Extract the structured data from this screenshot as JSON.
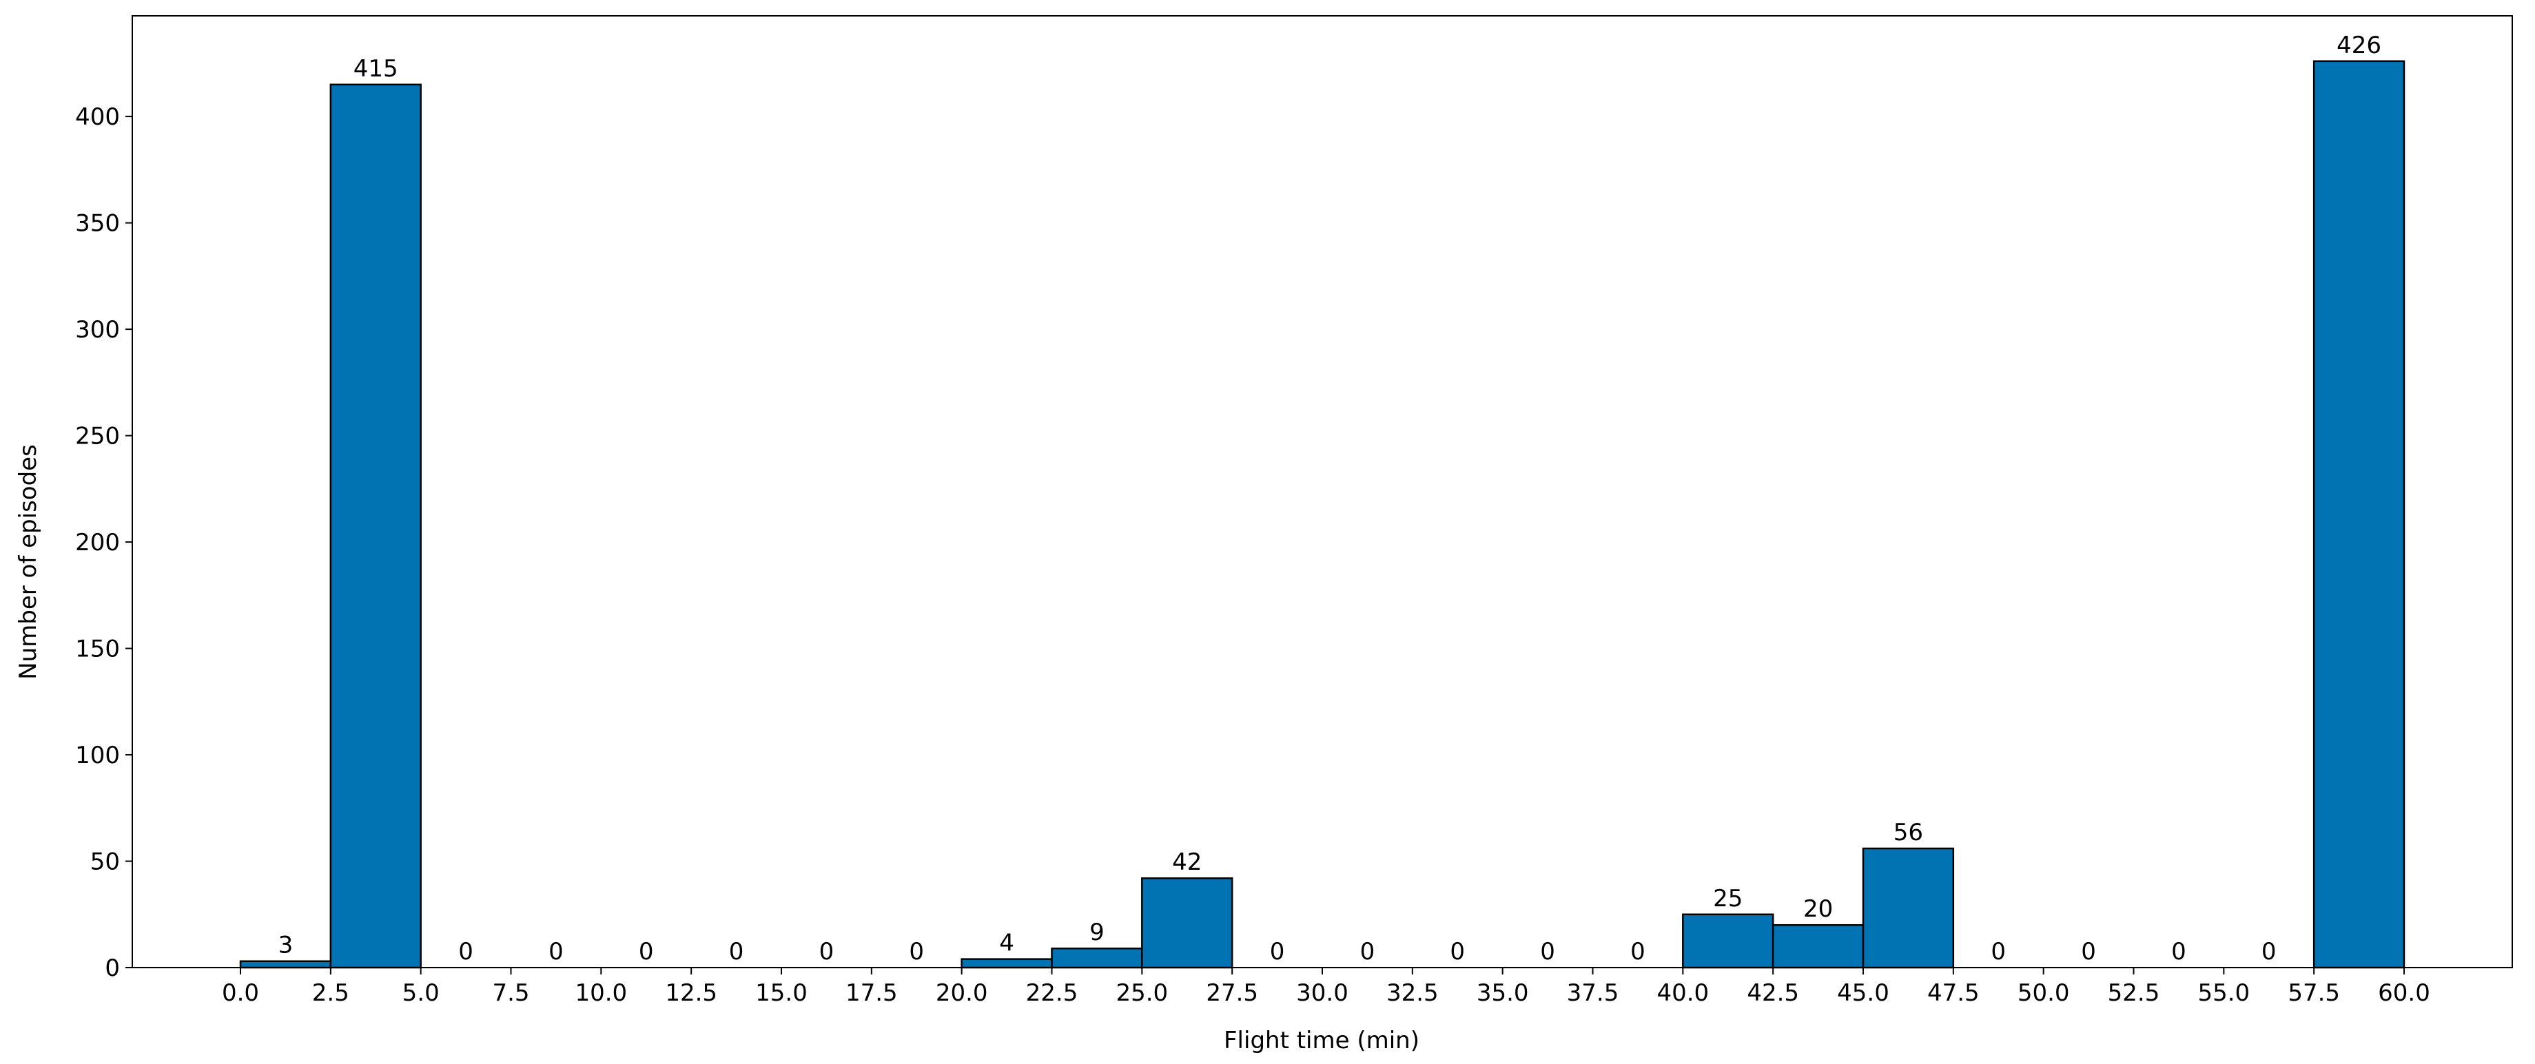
{
  "chart_data": {
    "type": "histogram",
    "xlabel": "Flight time (min)",
    "ylabel": "Number of episodes",
    "bins": [
      0,
      2.5,
      5,
      7.5,
      10,
      12.5,
      15,
      17.5,
      20,
      22.5,
      25,
      27.5,
      30,
      32.5,
      35,
      37.5,
      40,
      42.5,
      45,
      47.5,
      50,
      52.5,
      55,
      57.5,
      60
    ],
    "values": [
      3,
      415,
      0,
      0,
      0,
      0,
      0,
      0,
      4,
      9,
      42,
      0,
      0,
      0,
      0,
      0,
      25,
      20,
      56,
      0,
      0,
      0,
      0,
      426
    ],
    "color": "#0173b2",
    "edgecolor": "#000000",
    "xlim": [
      -3,
      63
    ],
    "ylim": [
      0,
      447.3
    ],
    "xticks": [
      {
        "value": 0,
        "label": "0.0"
      },
      2.5,
      {
        "value": 5,
        "label": "5.0"
      },
      7.5,
      {
        "value": 10,
        "label": "10.0"
      },
      12.5,
      {
        "value": 15,
        "label": "15.0"
      },
      17.5,
      {
        "value": 20,
        "label": "20.0"
      },
      22.5,
      {
        "value": 25,
        "label": "25.0"
      },
      27.5,
      {
        "value": 30,
        "label": "30.0"
      },
      32.5,
      {
        "value": 35,
        "label": "35.0"
      },
      37.5,
      {
        "value": 40,
        "label": "40.0"
      },
      42.5,
      {
        "value": 45,
        "label": "45.0"
      },
      47.5,
      {
        "value": 50,
        "label": "50.0"
      },
      52.5,
      {
        "value": 55,
        "label": "55.0"
      },
      57.5,
      {
        "value": 60,
        "label": "60.0"
      }
    ],
    "yticks": [
      0,
      50,
      100,
      150,
      200,
      250,
      300,
      350,
      400
    ],
    "grid": false
  }
}
